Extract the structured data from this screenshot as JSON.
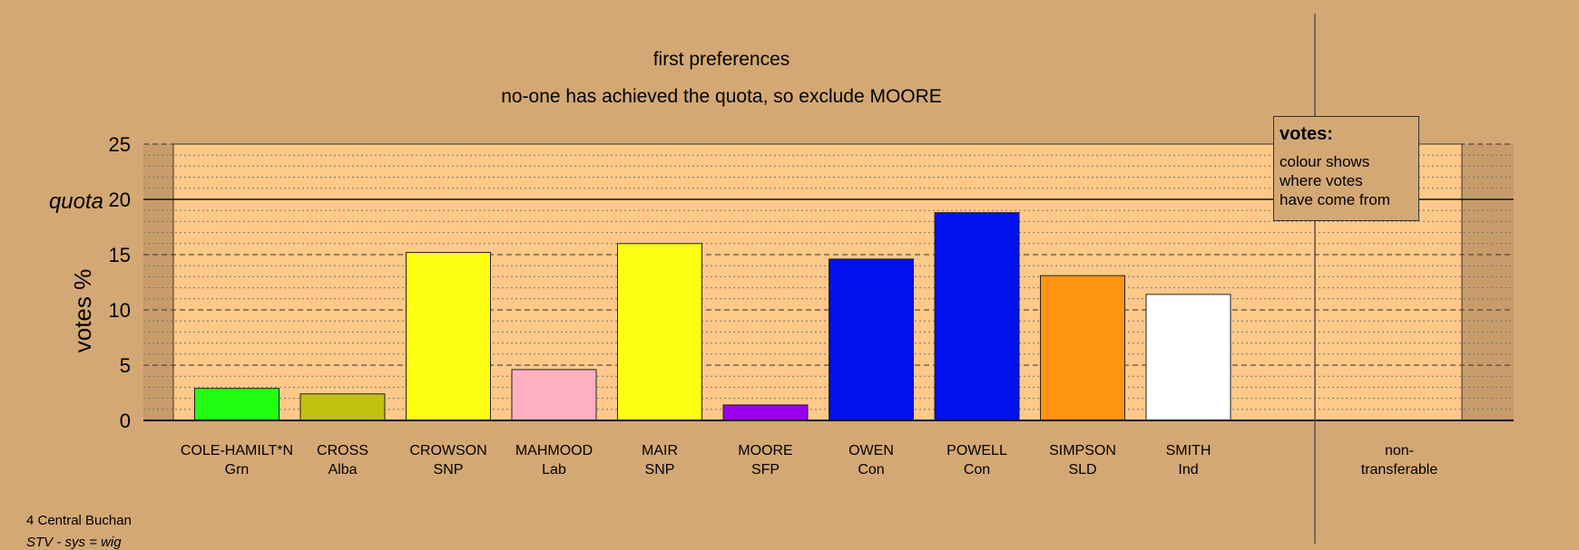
{
  "chart_data": {
    "type": "bar",
    "title": "first preferences",
    "subtitle": "no-one has achieved the quota, so exclude MOORE",
    "ylabel": "votes %",
    "quota_label": "quota",
    "quota_value": 20,
    "ylim": [
      0,
      25
    ],
    "yticks": [
      0,
      5,
      10,
      15,
      20,
      25
    ],
    "grid": true,
    "categories": [
      {
        "name": "COLE-HAMILT*N",
        "party": "Grn"
      },
      {
        "name": "CROSS",
        "party": "Alba"
      },
      {
        "name": "CROWSON",
        "party": "SNP"
      },
      {
        "name": "MAHMOOD",
        "party": "Lab"
      },
      {
        "name": "MAIR",
        "party": "SNP"
      },
      {
        "name": "MOORE",
        "party": "SFP"
      },
      {
        "name": "OWEN",
        "party": "Con"
      },
      {
        "name": "POWELL",
        "party": "Con"
      },
      {
        "name": "SIMPSON",
        "party": "SLD"
      },
      {
        "name": "SMITH",
        "party": "Ind"
      }
    ],
    "values": [
      2.9,
      2.4,
      15.2,
      4.6,
      16.0,
      1.4,
      14.6,
      18.8,
      13.1,
      11.4
    ],
    "colors": [
      "#22ff11",
      "#c0c010",
      "#ffff11",
      "#ffb0c0",
      "#ffff11",
      "#9a00ee",
      "#0011ee",
      "#0011ee",
      "#ff9410",
      "#ffffff"
    ],
    "non_transferable_label": [
      "non-",
      "transferable"
    ]
  },
  "legend": {
    "title": "votes:",
    "lines": [
      "colour shows",
      "where votes",
      "have come from"
    ]
  },
  "footnotes": {
    "area": "4 Central Buchan",
    "system": "STV - sys = wig"
  }
}
